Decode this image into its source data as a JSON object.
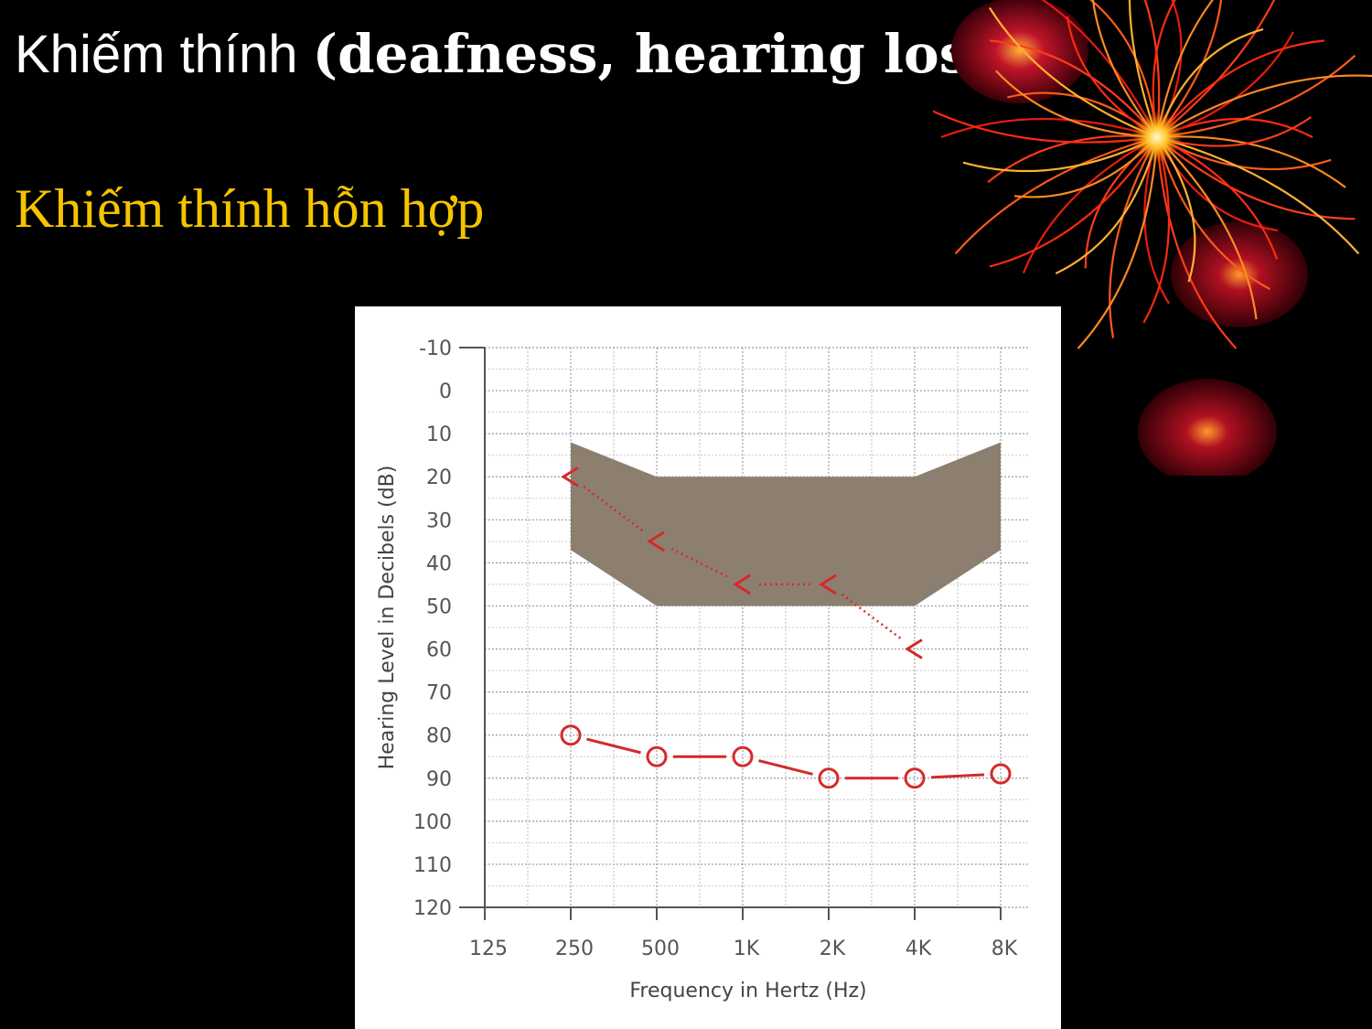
{
  "slide": {
    "title_plain": "Khiếm thính ",
    "title_bold": "(deafness, hearing loss)",
    "subtitle": "Khiếm thính hỗn hợp",
    "colors": {
      "background": "#000000",
      "title": "#ffffff",
      "subtitle": "#f5c400",
      "decoration": "#ff3b1a"
    },
    "decoration": "firework-burst-icon"
  },
  "chart_data": {
    "type": "line",
    "xlabel": "Frequency in Hertz (Hz)",
    "ylabel": "Hearing Level in Decibels (dB)",
    "x_categories": [
      "125",
      "250",
      "500",
      "1K",
      "2K",
      "4K",
      "8K"
    ],
    "y_ticks": [
      "-10",
      "0",
      "10",
      "20",
      "30",
      "40",
      "50",
      "60",
      "70",
      "80",
      "90",
      "100",
      "110",
      "120"
    ],
    "ylim": [
      -10,
      120
    ],
    "y_inverted": true,
    "grid": true,
    "series": [
      {
        "marker": "<",
        "line_style": "dotted",
        "color": "#d42a2a",
        "points": [
          {
            "x": "250",
            "y": 20
          },
          {
            "x": "500",
            "y": 35
          },
          {
            "x": "1K",
            "y": 45
          },
          {
            "x": "2K",
            "y": 45
          },
          {
            "x": "4K",
            "y": 60
          }
        ]
      },
      {
        "marker": "o",
        "line_style": "solid",
        "color": "#d42a2a",
        "points": [
          {
            "x": "250",
            "y": 80
          },
          {
            "x": "500",
            "y": 85
          },
          {
            "x": "1K",
            "y": 85
          },
          {
            "x": "2K",
            "y": 90
          },
          {
            "x": "4K",
            "y": 90
          },
          {
            "x": "8K",
            "y": 89
          }
        ]
      }
    ],
    "shaded_region": {
      "color": "#8c7f70",
      "top": [
        {
          "x": "250",
          "y": 12
        },
        {
          "x": "500",
          "y": 20
        },
        {
          "x": "4K",
          "y": 20
        },
        {
          "x": "8K",
          "y": 12
        }
      ],
      "bottom": [
        {
          "x": "250",
          "y": 37
        },
        {
          "x": "500",
          "y": 50
        },
        {
          "x": "4K",
          "y": 50
        },
        {
          "x": "8K",
          "y": 37
        }
      ]
    }
  }
}
